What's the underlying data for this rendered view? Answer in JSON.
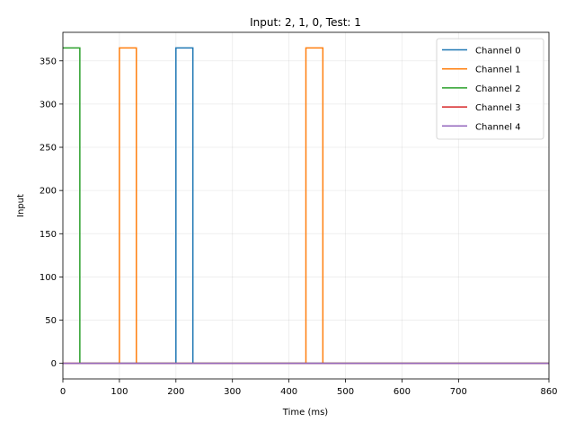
{
  "chart_data": {
    "type": "line",
    "title": "Input: 2, 1, 0, Test: 1",
    "xlabel": "Time (ms)",
    "ylabel": "Input",
    "xlim": [
      0,
      860
    ],
    "ylim": [
      -18,
      383
    ],
    "xticks": [
      0,
      100,
      200,
      300,
      400,
      500,
      600,
      700,
      860
    ],
    "yticks": [
      0,
      50,
      100,
      150,
      200,
      250,
      300,
      350
    ],
    "grid": true,
    "legend_position": "top-right",
    "series": [
      {
        "name": "Channel 0",
        "color": "#1f77b4",
        "x": [
          0,
          200,
          200,
          230,
          230,
          860
        ],
        "y": [
          0,
          0,
          365,
          365,
          0,
          0
        ]
      },
      {
        "name": "Channel 1",
        "color": "#ff7f0e",
        "x": [
          0,
          100,
          100,
          130,
          130,
          430,
          430,
          460,
          460,
          860
        ],
        "y": [
          0,
          0,
          365,
          365,
          0,
          0,
          365,
          365,
          0,
          0
        ]
      },
      {
        "name": "Channel 2",
        "color": "#2ca02c",
        "x": [
          0,
          30,
          30,
          860
        ],
        "y": [
          365,
          365,
          0,
          0
        ]
      },
      {
        "name": "Channel 3",
        "color": "#d62728",
        "x": [
          0,
          860
        ],
        "y": [
          0,
          0
        ]
      },
      {
        "name": "Channel 4",
        "color": "#9467bd",
        "x": [
          0,
          860
        ],
        "y": [
          0,
          0
        ]
      }
    ]
  }
}
